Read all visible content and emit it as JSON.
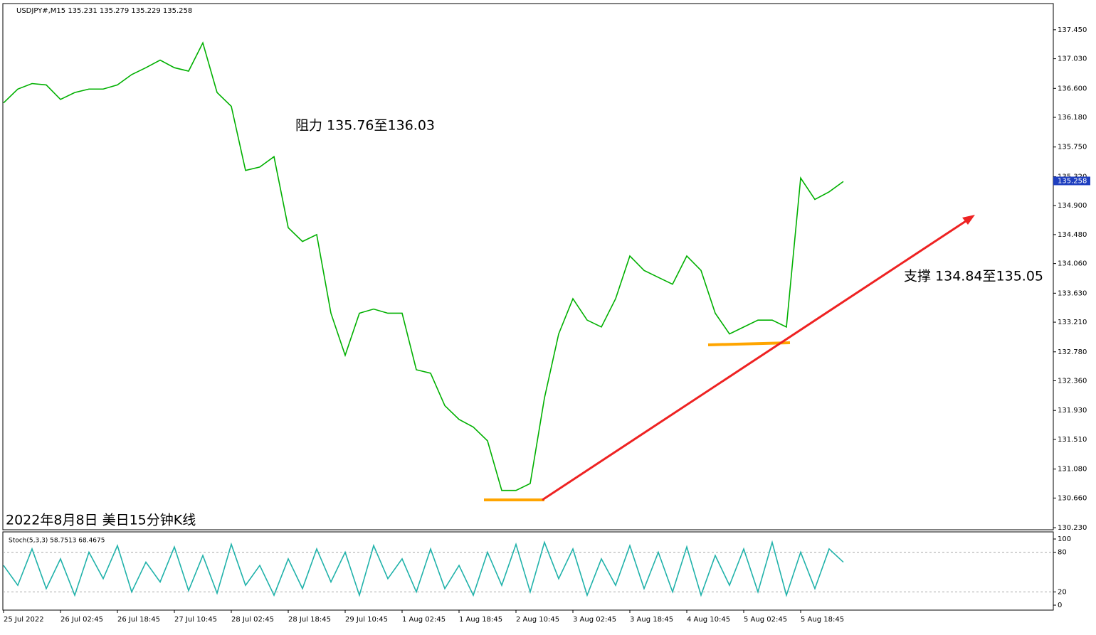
{
  "chart_data": [
    {
      "type": "line",
      "title": "USDJPY#,M15  135.231 135.279 135.229 135.258",
      "annotations": [
        "阻力 135.76至136.03",
        "支撑 134.84至135.05",
        "2022年8月8日 美日15分钟K线"
      ],
      "current_price": {
        "value": 135.258,
        "label": "135.258"
      },
      "x_labels": [
        "25 Jul 2022",
        "26 Jul 02:45",
        "26 Jul 18:45",
        "27 Jul 10:45",
        "28 Jul 02:45",
        "28 Jul 18:45",
        "29 Jul 10:45",
        "1 Aug 02:45",
        "1 Aug 18:45",
        "2 Aug 10:45",
        "3 Aug 02:45",
        "3 Aug 18:45",
        "4 Aug 10:45",
        "5 Aug 02:45",
        "5 Aug 18:45"
      ],
      "series": [
        {
          "color": "#00b000",
          "values": [
            136.39,
            136.59,
            136.67,
            136.65,
            136.44,
            136.54,
            136.59,
            136.59,
            136.65,
            136.8,
            136.9,
            137.01,
            136.9,
            136.85,
            137.26,
            136.54,
            136.34,
            135.41,
            135.46,
            135.61,
            134.58,
            134.38,
            134.48,
            133.34,
            132.73,
            133.34,
            133.4,
            133.34,
            133.34,
            132.52,
            132.47,
            132.0,
            131.8,
            131.69,
            131.49,
            130.77,
            130.77,
            130.87,
            132.11,
            133.04,
            133.55,
            133.24,
            133.14,
            133.55,
            134.17,
            133.96,
            133.86,
            133.76,
            134.17,
            133.96,
            133.34,
            133.04,
            133.14,
            133.24,
            133.24,
            133.14,
            135.3,
            134.99,
            135.1,
            135.25
          ]
        }
      ],
      "ylim": [
        130.2,
        137.83
      ],
      "yticks": [
        {
          "value": 137.45,
          "label": "137.450"
        },
        {
          "value": 137.03,
          "label": "137.030"
        },
        {
          "value": 136.6,
          "label": "136.600"
        },
        {
          "value": 136.18,
          "label": "136.180"
        },
        {
          "value": 135.75,
          "label": "135.750"
        },
        {
          "value": 135.32,
          "label": "135.320"
        },
        {
          "value": 134.9,
          "label": "134.900"
        },
        {
          "value": 134.48,
          "label": "134.480"
        },
        {
          "value": 134.06,
          "label": "134.060"
        },
        {
          "value": 133.63,
          "label": "133.630"
        },
        {
          "value": 133.21,
          "label": "133.210"
        },
        {
          "value": 132.78,
          "label": "132.780"
        },
        {
          "value": 132.36,
          "label": "132.360"
        },
        {
          "value": 131.93,
          "label": "131.930"
        },
        {
          "value": 131.51,
          "label": "131.510"
        },
        {
          "value": 131.08,
          "label": "131.080"
        },
        {
          "value": 130.66,
          "label": "130.660"
        },
        {
          "value": 130.23,
          "label": "130.230"
        }
      ]
    },
    {
      "type": "line",
      "title": "Stoch(5,3,3) 58.7513 68.4675",
      "series": [
        {
          "color": "#20b2aa",
          "values": [
            60,
            30,
            85,
            25,
            70,
            15,
            80,
            40,
            90,
            20,
            65,
            35,
            88,
            22,
            75,
            18,
            92,
            30,
            60,
            15,
            70,
            25,
            85,
            35,
            80,
            15,
            90,
            40,
            70,
            20,
            85,
            25,
            60,
            15,
            80,
            30,
            92,
            20,
            95,
            40,
            85,
            15,
            70,
            30,
            90,
            25,
            80,
            20,
            88,
            15,
            75,
            30,
            85,
            20,
            95,
            15,
            80,
            25,
            85,
            65
          ]
        }
      ],
      "ylim": [
        -7.5,
        110.75
      ],
      "yticks": [
        100,
        80,
        20,
        0
      ]
    }
  ]
}
